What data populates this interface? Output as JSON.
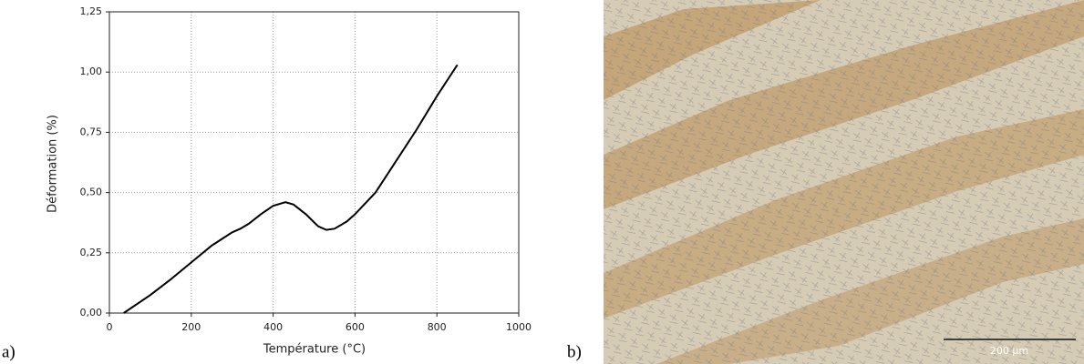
{
  "chart_data": {
    "type": "line",
    "x_label": "Température (°C)",
    "y_label": "Déformation (%)",
    "series": [
      {
        "name": "Déformation",
        "color": "#000000",
        "x": [
          35,
          100,
          150,
          200,
          250,
          300,
          320,
          340,
          370,
          400,
          430,
          450,
          480,
          510,
          530,
          550,
          580,
          600,
          650,
          700,
          750,
          800,
          850
        ],
        "values": [
          0,
          0.075,
          0.14,
          0.21,
          0.28,
          0.335,
          0.35,
          0.37,
          0.41,
          0.445,
          0.46,
          0.45,
          0.41,
          0.36,
          0.345,
          0.35,
          0.38,
          0.41,
          0.5,
          0.63,
          0.76,
          0.9,
          1.03
        ]
      }
    ],
    "xlim": [
      0,
      1000
    ],
    "xticks": [
      0,
      200,
      400,
      600,
      800,
      1000
    ],
    "ylim": [
      0,
      1.25
    ],
    "yticks": [
      {
        "value": 0,
        "label": "0,00"
      },
      {
        "value": 0.25,
        "label": "0,25"
      },
      {
        "value": 0.5,
        "label": "0,50"
      },
      {
        "value": 0.75,
        "label": "0,75"
      },
      {
        "value": 1,
        "label": "1,00"
      },
      {
        "value": 1.25,
        "label": "1,25"
      }
    ],
    "grid": true
  },
  "panels": {
    "a": "a)",
    "b": "b)"
  },
  "micrograph": {
    "scale_bar": "200 µm"
  }
}
